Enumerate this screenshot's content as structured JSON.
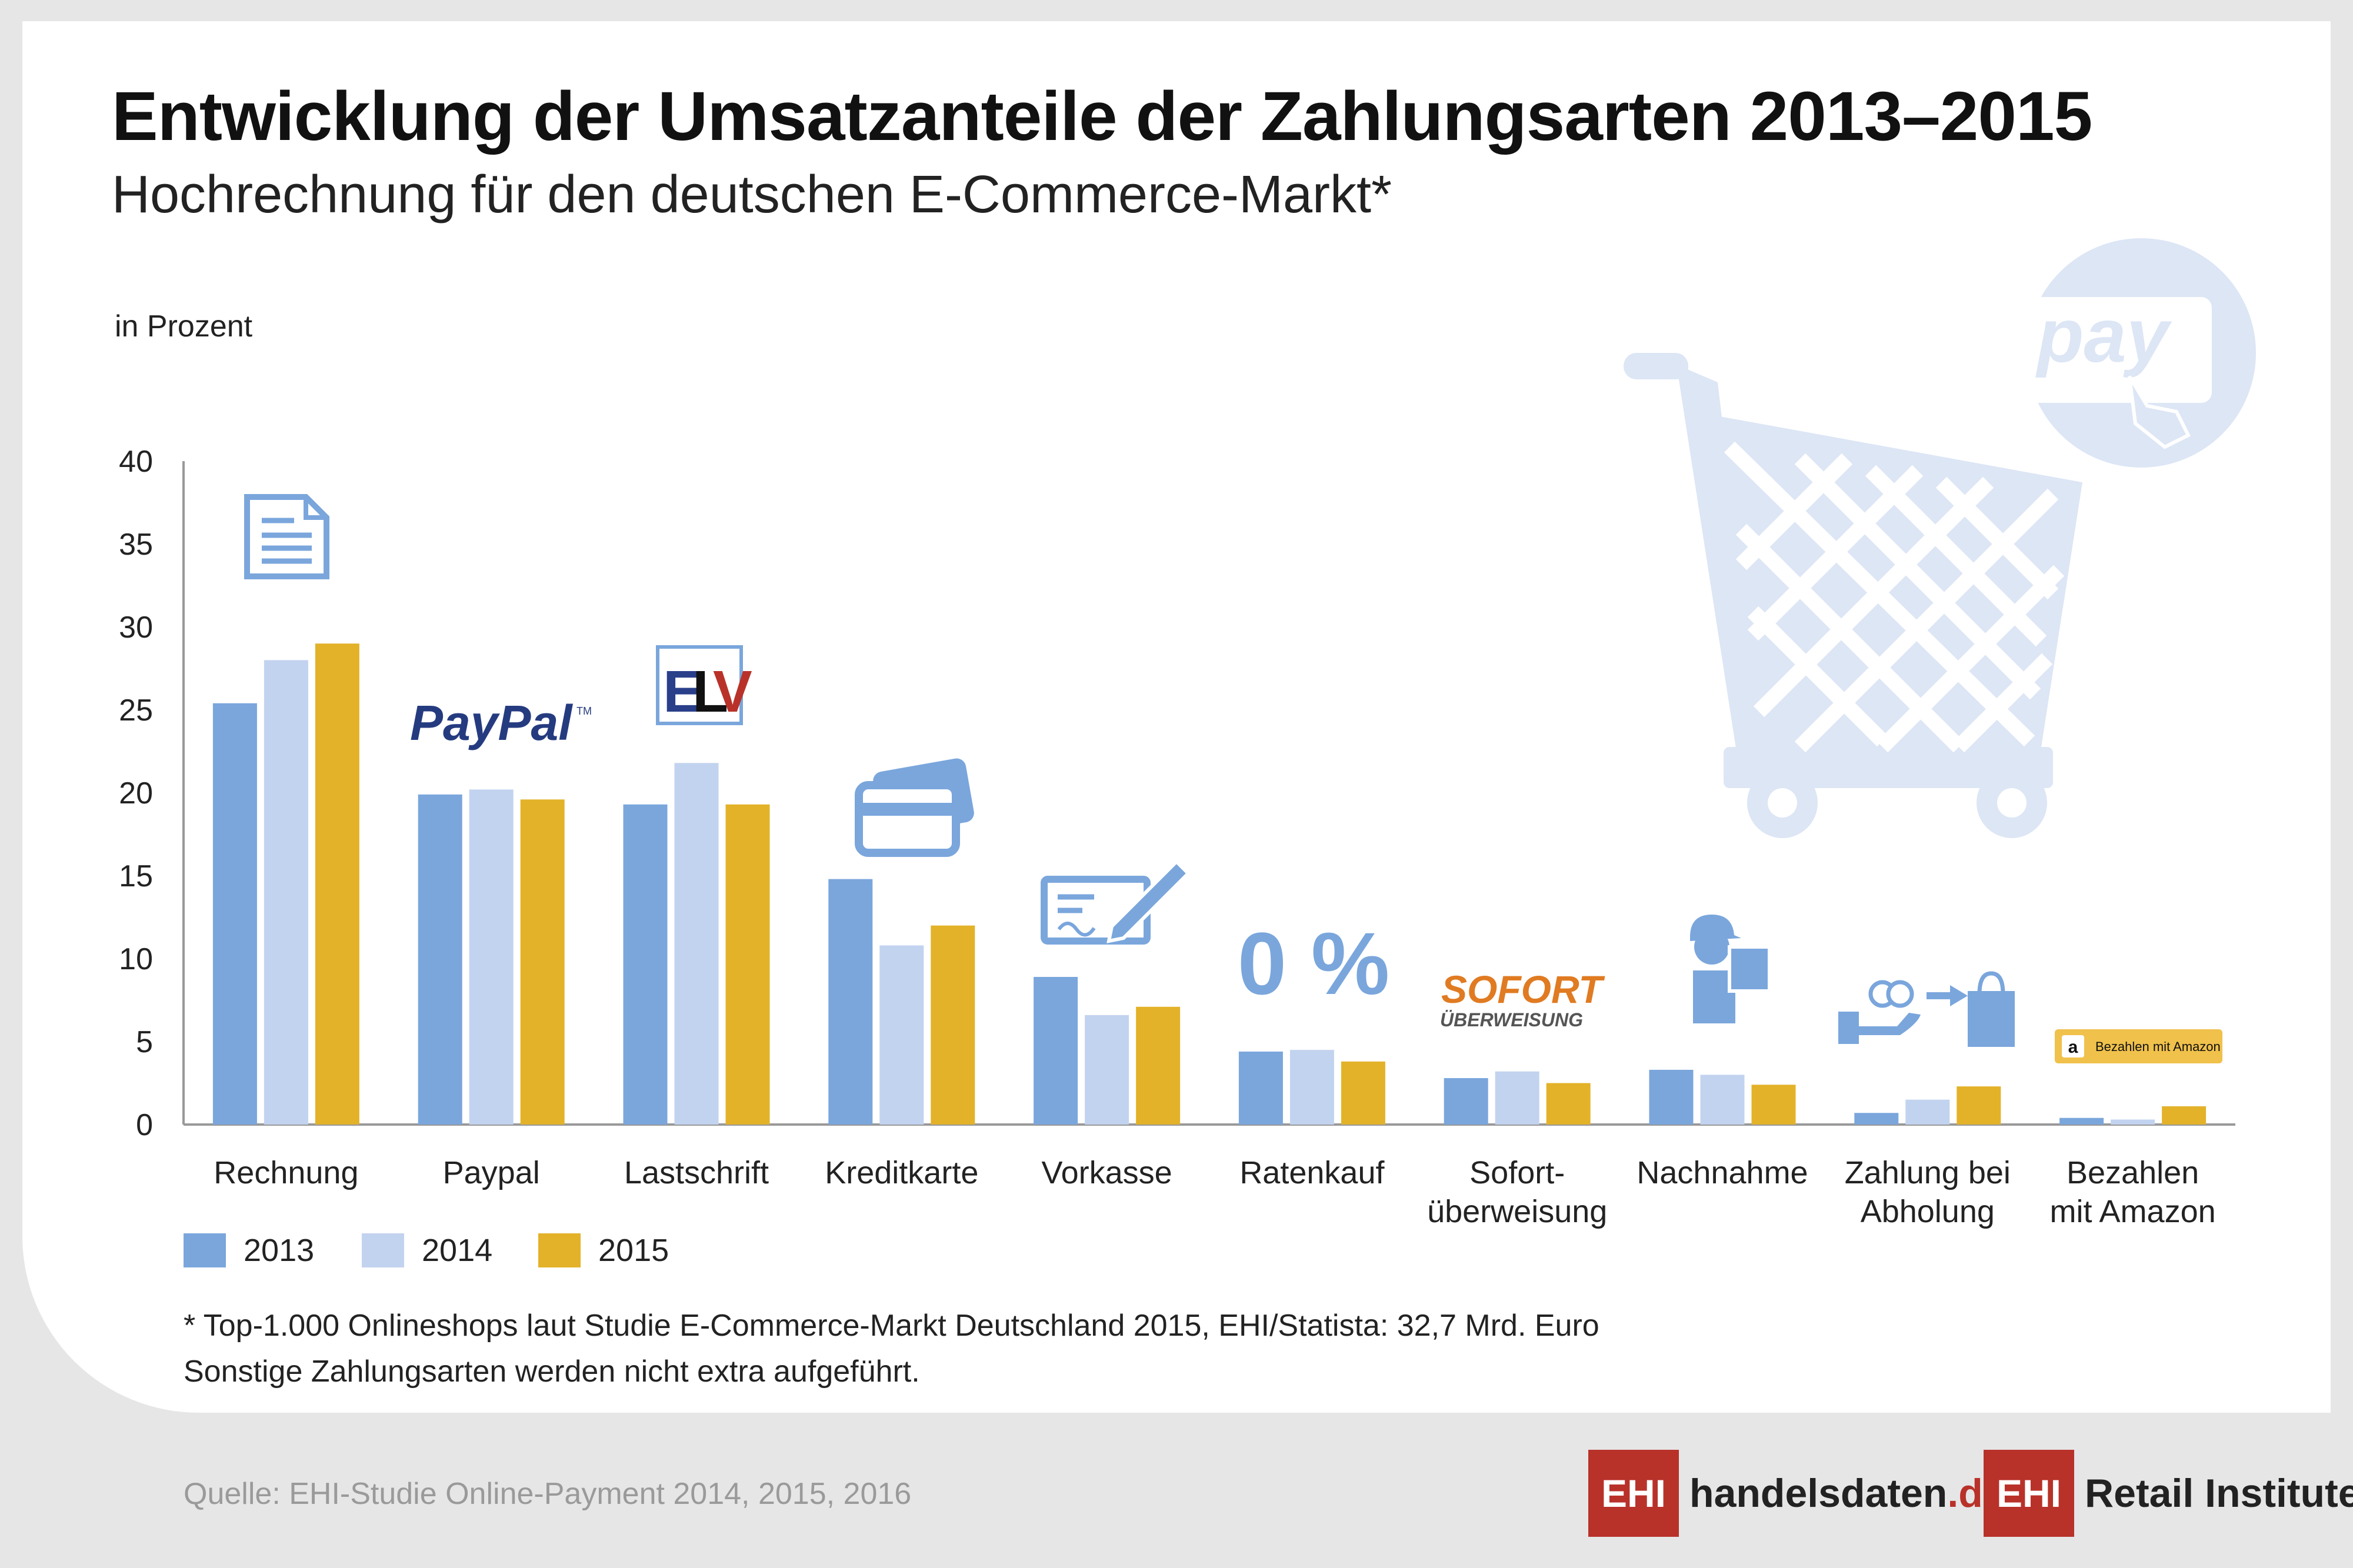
{
  "title": "Entwicklung der Umsatzanteile der Zahlungsarten 2013–2015",
  "subtitle": "Hochrechnung für den deutschen E-Commerce-Markt*",
  "unit_label": "in Prozent",
  "chart_data": {
    "type": "bar",
    "title": "Entwicklung der Umsatzanteile der Zahlungsarten 2013–2015",
    "subtitle": "Hochrechnung für den deutschen E-Commerce-Markt*",
    "ylabel": "in Prozent",
    "xlabel": "",
    "ylim": [
      0,
      40
    ],
    "yticks": [
      0,
      5,
      10,
      15,
      20,
      25,
      30,
      35,
      40
    ],
    "grid": false,
    "legend_position": "bottom-left",
    "categories": [
      "Rechnung",
      "Paypal",
      "Lastschrift",
      "Kreditkarte",
      "Vorkasse",
      "Ratenkauf",
      "Sofort-\nüberweisung",
      "Nachnahme",
      "Zahlung bei\nAbholung",
      "Bezahlen\nmit Amazon"
    ],
    "series": [
      {
        "name": "2013",
        "color": "#7aa6dc",
        "values": [
          25.4,
          19.9,
          19.3,
          14.8,
          8.9,
          4.4,
          2.8,
          3.3,
          0.7,
          0.4
        ]
      },
      {
        "name": "2014",
        "color": "#c2d3ef",
        "values": [
          28.0,
          20.2,
          21.8,
          10.8,
          6.6,
          4.5,
          3.2,
          3.0,
          1.5,
          0.3
        ]
      },
      {
        "name": "2015",
        "color": "#e3b229",
        "values": [
          29.0,
          19.6,
          19.3,
          12.0,
          7.1,
          3.8,
          2.5,
          2.4,
          2.3,
          1.1
        ]
      }
    ]
  },
  "category_icons": [
    "document-icon",
    "paypal-logo",
    "elv-logo",
    "credit-card-icon",
    "cheque-icon",
    "zero-percent-icon",
    "sofort-logo",
    "delivery-person-icon",
    "pickup-payment-icon",
    "amazon-pay-badge"
  ],
  "logo_texts": {
    "paypal": "PayPal",
    "paypal_tm": "TM",
    "elv_e": "E",
    "elv_l": "L",
    "elv_v": "V",
    "zero_percent": "0 %",
    "sofort": "SOFORT",
    "sofort_sub": "ÜBERWEISUNG",
    "amazon": "Bezahlen mit Amazon",
    "pay": "pay"
  },
  "colors": {
    "series_2013": "#7aa6dc",
    "series_2014": "#c2d3ef",
    "series_2015": "#e3b229",
    "icon_blue": "#7aa6dc",
    "cart_light": "#dde6f5",
    "brand_red": "#b8322a"
  },
  "footnote": {
    "line1": "*  Top-1.000 Onlineshops laut Studie E-Commerce-Markt Deutschland 2015, EHI/Statista: 32,7 Mrd. Euro",
    "line2": "Sonstige Zahlungsarten werden nicht extra aufgeführt."
  },
  "source": "Quelle: EHI-Studie Online-Payment 2014, 2015, 2016",
  "logos": {
    "handelsdaten_box": "EHI",
    "handelsdaten_text": "handelsdaten",
    "handelsdaten_tld": ".de",
    "retail_box": "EHI",
    "retail_text": "Retail Institute",
    "retail_reg": "®"
  }
}
